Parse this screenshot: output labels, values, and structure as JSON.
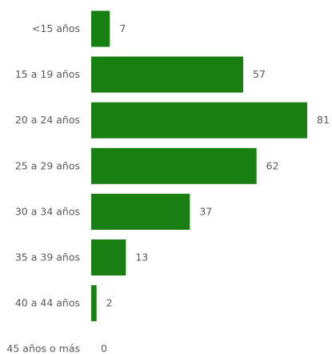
{
  "chart_data": {
    "type": "bar",
    "orientation": "horizontal",
    "categories": [
      "<15 años",
      "15 a 19 años",
      "20 a 24 años",
      "25 a 29 años",
      "30 a 34 años",
      "35 a 39 años",
      "40 a 44 años",
      "45 años o más"
    ],
    "values": [
      7,
      57,
      81,
      62,
      37,
      13,
      2,
      0
    ],
    "data_labels": [
      "7",
      "57",
      "81",
      "62",
      "37",
      "13",
      "2",
      "0"
    ],
    "bar_color": "#1a7f13",
    "xlim": [
      0,
      81
    ],
    "grid": false,
    "legend": "none"
  }
}
